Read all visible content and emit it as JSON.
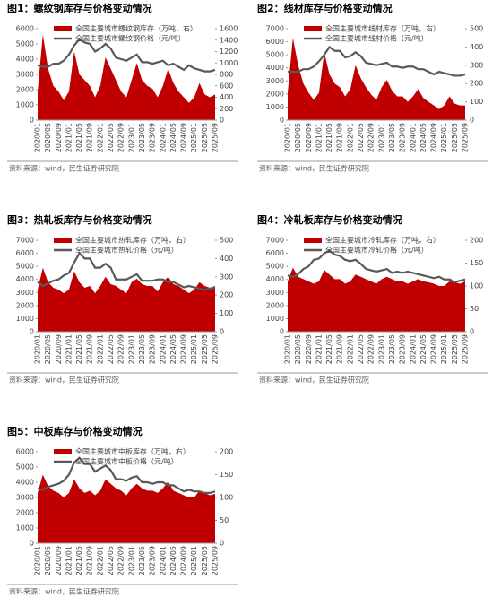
{
  "chart_data": [
    {
      "type": "combo",
      "title": "图1：螺纹钢库存与价格变动情况",
      "source": "资料来源：wind，民生证券研究院",
      "categories": [
        "2020/01",
        null,
        "2020/05",
        null,
        "2020/09",
        null,
        "2021/01",
        null,
        "2021/05",
        null,
        "2021/09",
        null,
        "2022/01",
        null,
        "2022/05",
        null,
        "2022/09",
        null,
        "2023/01",
        null,
        "2023/05",
        null,
        "2023/09",
        null,
        "2024/01",
        null,
        "2024/05",
        null,
        "2024/09",
        null,
        "2025/01",
        null,
        "2025/05",
        null,
        "2025/09"
      ],
      "ylim": [
        0,
        6000
      ],
      "yticks": [
        0,
        1000,
        2000,
        3000,
        4000,
        5000,
        6000
      ],
      "y2lim": [
        0,
        1600
      ],
      "y2ticks": [
        0,
        200,
        400,
        600,
        800,
        1000,
        1200,
        1400,
        1600
      ],
      "series": [
        {
          "name": "全国主要城市螺纹钢库存（万吨，右）",
          "type": "area",
          "axis": "y2",
          "color": "#c00000",
          "values": [
            500,
            1500,
            900,
            600,
            500,
            350,
            500,
            1200,
            800,
            700,
            600,
            400,
            600,
            1100,
            900,
            700,
            500,
            400,
            700,
            1000,
            700,
            600,
            550,
            400,
            600,
            900,
            650,
            500,
            400,
            300,
            400,
            650,
            450,
            400,
            450
          ]
        },
        {
          "name": "全国主要城市螺纹钢价格（元/吨）",
          "type": "line",
          "color": "#595959",
          "values": [
            3600,
            3500,
            3500,
            3700,
            3700,
            3900,
            4300,
            4900,
            5300,
            5100,
            5000,
            4500,
            4700,
            5000,
            4700,
            4100,
            4000,
            3900,
            4100,
            4300,
            3800,
            3800,
            3700,
            3800,
            3900,
            3600,
            3700,
            3500,
            3300,
            3600,
            3400,
            3300,
            3200,
            3200,
            3300
          ]
        }
      ]
    },
    {
      "type": "combo",
      "title": "图2：线材库存与价格变动情况",
      "source": "资料来源：wind，民生证券研究院",
      "categories": [
        "2020/01",
        null,
        "2020/05",
        null,
        "2020/09",
        null,
        "2021/01",
        null,
        "2021/05",
        null,
        "2021/09",
        null,
        "2022/01",
        null,
        "2022/05",
        null,
        "2022/09",
        null,
        "2023/01",
        null,
        "2023/05",
        null,
        "2023/09",
        null,
        "2024/01",
        null,
        "2024/05",
        null,
        "2024/09",
        null,
        "2025/01",
        null,
        "2025/05",
        null,
        "2025/09"
      ],
      "ylim": [
        0,
        7000
      ],
      "yticks": [
        0,
        1000,
        2000,
        3000,
        4000,
        5000,
        6000,
        7000
      ],
      "y2lim": [
        0,
        500
      ],
      "y2ticks": [
        0,
        100,
        200,
        300,
        400,
        500
      ],
      "series": [
        {
          "name": "全国主要城市线材库存（万吨，右）",
          "type": "area",
          "axis": "y2",
          "color": "#c00000",
          "values": [
            150,
            450,
            300,
            200,
            150,
            110,
            150,
            370,
            250,
            200,
            180,
            130,
            170,
            300,
            230,
            180,
            140,
            110,
            180,
            220,
            160,
            130,
            130,
            100,
            130,
            170,
            120,
            100,
            80,
            60,
            80,
            130,
            90,
            80,
            80
          ]
        },
        {
          "name": "全国主要城市线材价格（元/吨）",
          "type": "line",
          "color": "#595959",
          "values": [
            3700,
            3700,
            3700,
            3900,
            3900,
            4100,
            4500,
            5000,
            5600,
            5300,
            5300,
            4800,
            4900,
            5200,
            4900,
            4400,
            4300,
            4200,
            4300,
            4400,
            4100,
            4100,
            4000,
            4100,
            4100,
            3900,
            3900,
            3700,
            3500,
            3700,
            3600,
            3500,
            3400,
            3400,
            3500
          ]
        }
      ]
    },
    {
      "type": "combo",
      "title": "图3：热轧板库存与价格变动情况",
      "source": "资料来源：wind，民生证券研究院",
      "categories": [
        "2020/01",
        null,
        "2020/05",
        null,
        "2020/09",
        null,
        "2021/01",
        null,
        "2021/05",
        null,
        "2021/09",
        null,
        "2022/01",
        null,
        "2022/05",
        null,
        "2022/09",
        null,
        "2023/01",
        null,
        "2023/05",
        null,
        "2023/09",
        null,
        "2024/01",
        null,
        "2024/05",
        null,
        "2024/09",
        null,
        "2025/01",
        null,
        "2025/05",
        null,
        "2025/09"
      ],
      "ylim": [
        0,
        7000
      ],
      "yticks": [
        0,
        1000,
        2000,
        3000,
        4000,
        5000,
        6000,
        7000
      ],
      "y2lim": [
        0,
        500
      ],
      "y2ticks": [
        0,
        100,
        200,
        300,
        400,
        500
      ],
      "series": [
        {
          "name": "全国主要城市热轧库存（万吨，右）",
          "type": "area",
          "axis": "y2",
          "color": "#c00000",
          "values": [
            230,
            350,
            270,
            240,
            230,
            210,
            230,
            330,
            270,
            240,
            250,
            210,
            250,
            300,
            260,
            250,
            230,
            210,
            270,
            290,
            260,
            250,
            250,
            220,
            270,
            300,
            260,
            250,
            230,
            210,
            230,
            270,
            250,
            240,
            250
          ]
        },
        {
          "name": "全国主要城市热轧价格（元/吨）",
          "type": "line",
          "color": "#595959",
          "values": [
            3800,
            3500,
            3700,
            3900,
            4000,
            4300,
            4500,
            5300,
            6000,
            5600,
            5600,
            4900,
            4900,
            5200,
            4900,
            4000,
            4000,
            4000,
            4200,
            4400,
            3900,
            3900,
            3900,
            4000,
            4000,
            3800,
            3800,
            3600,
            3400,
            3500,
            3400,
            3300,
            3200,
            3300,
            3400
          ]
        }
      ]
    },
    {
      "type": "combo",
      "title": "图4：冷轧板库存与价格变动情况",
      "source": "资料来源：wind，民生证券研究院",
      "categories": [
        "2020/01",
        null,
        "2020/05",
        null,
        "2020/09",
        null,
        "2021/01",
        null,
        "2021/05",
        null,
        "2021/09",
        null,
        "2022/01",
        null,
        "2022/05",
        null,
        "2022/09",
        null,
        "2023/01",
        null,
        "2023/05",
        null,
        "2023/09",
        null,
        "2024/01",
        null,
        "2024/05",
        null,
        "2024/09",
        null,
        "2025/01",
        null,
        "2025/05",
        null,
        "2025/09"
      ],
      "ylim": [
        0,
        7000
      ],
      "yticks": [
        0,
        1000,
        2000,
        3000,
        4000,
        5000,
        6000,
        7000
      ],
      "y2lim": [
        0,
        200
      ],
      "y2ticks": [
        0,
        50,
        100,
        150,
        200
      ],
      "series": [
        {
          "name": "全国主要城市冷轧库存（万吨，右）",
          "type": "area",
          "axis": "y2",
          "color": "#c00000",
          "values": [
            110,
            140,
            120,
            115,
            110,
            105,
            110,
            135,
            125,
            115,
            115,
            105,
            110,
            125,
            120,
            115,
            110,
            105,
            115,
            120,
            115,
            110,
            110,
            105,
            110,
            115,
            110,
            108,
            105,
            100,
            100,
            110,
            108,
            105,
            110
          ]
        },
        {
          "name": "全国主要城市冷轧价格（元/吨）",
          "type": "line",
          "color": "#595959",
          "values": [
            4300,
            4200,
            4400,
            4800,
            5000,
            5500,
            5600,
            6000,
            6200,
            5900,
            5800,
            5500,
            5400,
            5500,
            5200,
            4800,
            4700,
            4600,
            4700,
            4800,
            4500,
            4600,
            4500,
            4600,
            4500,
            4400,
            4300,
            4200,
            4100,
            4200,
            4000,
            4000,
            3800,
            3900,
            4000
          ]
        }
      ]
    },
    {
      "type": "combo",
      "title": "图5：中板库存与价格变动情况",
      "source": "资料来源：wind，民生证券研究院",
      "categories": [
        "2020/01",
        null,
        "2020/05",
        null,
        "2020/09",
        null,
        "2021/01",
        null,
        "2021/05",
        null,
        "2021/09",
        null,
        "2022/01",
        null,
        "2022/05",
        null,
        "2022/09",
        null,
        "2023/01",
        null,
        "2023/05",
        null,
        "2023/09",
        null,
        "2024/01",
        null,
        "2024/05",
        null,
        "2024/09",
        null,
        "2025/01",
        null,
        "2025/05",
        null,
        "2025/09"
      ],
      "ylim": [
        0,
        6000
      ],
      "yticks": [
        0,
        1000,
        2000,
        3000,
        4000,
        5000,
        6000
      ],
      "y2lim": [
        0,
        200
      ],
      "y2ticks": [
        0,
        50,
        100,
        150,
        200
      ],
      "series": [
        {
          "name": "全国主要城市中板库存（万吨，右）",
          "type": "area",
          "axis": "y2",
          "color": "#c00000",
          "values": [
            110,
            150,
            125,
            115,
            110,
            100,
            110,
            140,
            120,
            110,
            115,
            105,
            115,
            140,
            130,
            120,
            115,
            105,
            120,
            130,
            120,
            115,
            115,
            110,
            120,
            135,
            115,
            110,
            105,
            100,
            100,
            115,
            110,
            105,
            108
          ]
        },
        {
          "name": "全国主要城市中板价格（元/吨）",
          "type": "line",
          "color": "#595959",
          "values": [
            3600,
            3500,
            3700,
            3800,
            3900,
            4100,
            4500,
            5300,
            5600,
            5200,
            5200,
            4700,
            4900,
            5100,
            4800,
            4200,
            4200,
            4100,
            4300,
            4400,
            4000,
            4000,
            3900,
            4000,
            4000,
            3800,
            3800,
            3600,
            3400,
            3500,
            3400,
            3400,
            3300,
            3300,
            3400
          ]
        }
      ]
    }
  ]
}
